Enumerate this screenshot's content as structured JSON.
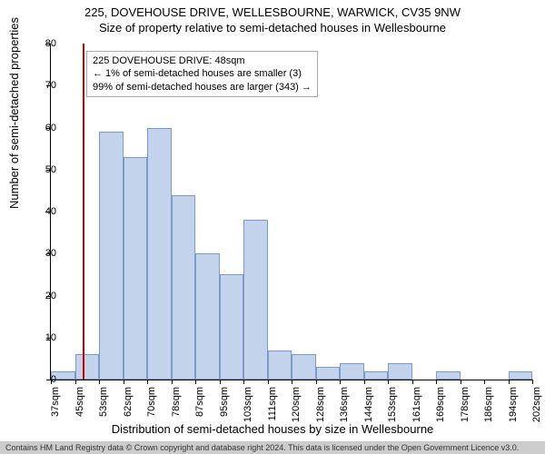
{
  "chart": {
    "title": "225, DOVEHOUSE DRIVE, WELLESBOURNE, WARWICK, CV35 9NW",
    "subtitle": "Size of property relative to semi-detached houses in Wellesbourne",
    "y_axis_label": "Number of semi-detached properties",
    "x_axis_label": "Distribution of semi-detached houses by size in Wellesbourne",
    "footer": "Contains HM Land Registry data © Crown copyright and database right 2024. This data is licensed under the Open Government Licence v3.0.",
    "type": "histogram",
    "ylim": [
      0,
      80
    ],
    "ytick_step": 10,
    "yticks": [
      0,
      10,
      20,
      30,
      40,
      50,
      60,
      70,
      80
    ],
    "x_start_sqm": 37,
    "x_end_sqm": 205,
    "x_tick_step_sqm": 8.3333,
    "x_labels": [
      "37sqm",
      "45sqm",
      "53sqm",
      "62sqm",
      "70sqm",
      "78sqm",
      "87sqm",
      "95sqm",
      "103sqm",
      "111sqm",
      "120sqm",
      "128sqm",
      "136sqm",
      "144sqm",
      "153sqm",
      "161sqm",
      "169sqm",
      "178sqm",
      "186sqm",
      "194sqm",
      "202sqm"
    ],
    "bar_color": "#c2d3eb",
    "bar_border_color": "#7a9bc9",
    "ref_line_color": "#cc0000",
    "ref_line_sqm": 48,
    "background_color": "#ffffff",
    "bars": [
      {
        "x_index": 0,
        "value": 2
      },
      {
        "x_index": 1,
        "value": 6
      },
      {
        "x_index": 2,
        "value": 59
      },
      {
        "x_index": 3,
        "value": 53
      },
      {
        "x_index": 4,
        "value": 60
      },
      {
        "x_index": 5,
        "value": 44
      },
      {
        "x_index": 6,
        "value": 30
      },
      {
        "x_index": 7,
        "value": 25
      },
      {
        "x_index": 8,
        "value": 38
      },
      {
        "x_index": 9,
        "value": 7
      },
      {
        "x_index": 10,
        "value": 6
      },
      {
        "x_index": 11,
        "value": 3
      },
      {
        "x_index": 12,
        "value": 4
      },
      {
        "x_index": 13,
        "value": 2
      },
      {
        "x_index": 14,
        "value": 4
      },
      {
        "x_index": 15,
        "value": 0
      },
      {
        "x_index": 16,
        "value": 2
      },
      {
        "x_index": 17,
        "value": 0
      },
      {
        "x_index": 18,
        "value": 0
      },
      {
        "x_index": 19,
        "value": 2
      }
    ],
    "annotation": {
      "line1": "225 DOVEHOUSE DRIVE: 48sqm",
      "line2": "← 1% of semi-detached houses are smaller (3)",
      "line3": "99% of semi-detached houses are larger (343) →"
    }
  }
}
